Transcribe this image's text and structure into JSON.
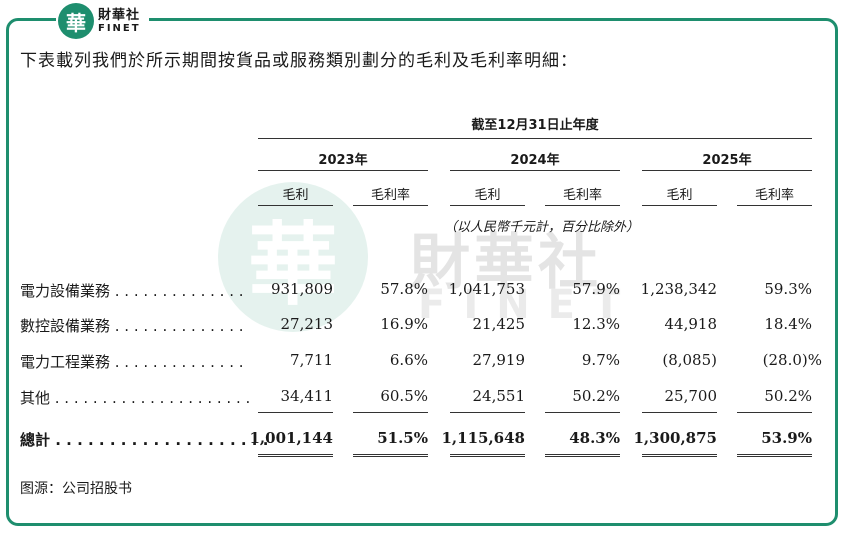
{
  "brand": {
    "logo_char": "華",
    "name_cn": "財華社",
    "name_en": "FINET",
    "watermark_char": "華",
    "watermark_cn": "財華社",
    "watermark_en": "FINET",
    "accent_color": "#1e8e6e"
  },
  "title": "下表載列我們於所示期間按貨品或服務類別劃分的毛利及毛利率明細：",
  "table": {
    "period_header": "截至12月31日止年度",
    "years": [
      "2023年",
      "2024年",
      "2025年"
    ],
    "sub_headers": [
      "毛利",
      "毛利率",
      "毛利",
      "毛利率",
      "毛利",
      "毛利率"
    ],
    "unit_note": "（以人民幣千元計，百分比除外）",
    "rows": [
      {
        "label": "電力設備業務 . . . . . . . . . . . . . .",
        "cells": [
          "931,809",
          "57.8%",
          "1,041,753",
          "57.9%",
          "1,238,342",
          "59.3%"
        ]
      },
      {
        "label": "數控設備業務 . . . . . . . . . . . . . .",
        "cells": [
          "27,213",
          "16.9%",
          "21,425",
          "12.3%",
          "44,918",
          "18.4%"
        ]
      },
      {
        "label": "電力工程業務 . . . . . . . . . . . . . .",
        "cells": [
          "7,711",
          "6.6%",
          "27,919",
          "9.7%",
          "(8,085)",
          "(28.0)%"
        ]
      },
      {
        "label": "其他 . . . . . . . . . . . . . . . . . . . . .",
        "cells": [
          "34,411",
          "60.5%",
          "24,551",
          "50.2%",
          "25,700",
          "50.2%"
        ]
      }
    ],
    "total": {
      "label": "總計 . . . . . . . . . . . . . . . . . . . .",
      "cells": [
        "1,001,144",
        "51.5%",
        "1,115,648",
        "48.3%",
        "1,300,875",
        "53.9%"
      ]
    }
  },
  "source": "图源：公司招股书"
}
